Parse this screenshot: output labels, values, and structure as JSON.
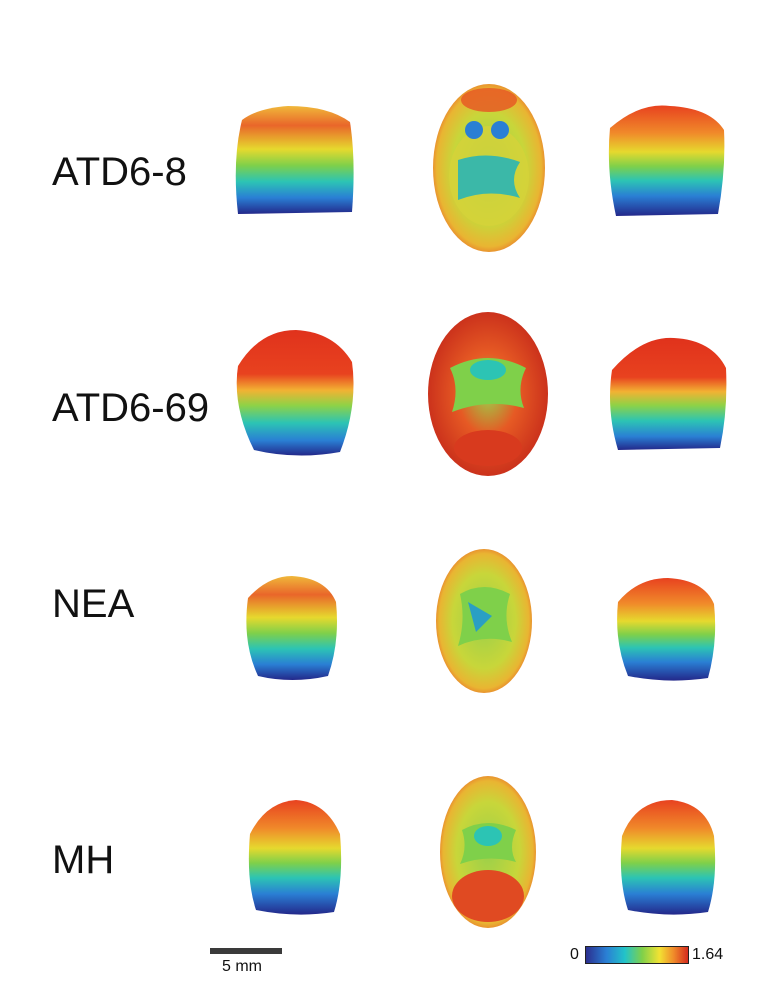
{
  "rows": [
    {
      "label": "ATD6-8"
    },
    {
      "label": "ATD6-69"
    },
    {
      "label": "NEA"
    },
    {
      "label": "MH"
    }
  ],
  "scale_bar": {
    "label": "5 mm"
  },
  "colorbar": {
    "min_label": "0",
    "max_label": "1.64",
    "colors": [
      "#2b2f8f",
      "#2a7fd4",
      "#22c3c9",
      "#7fd04a",
      "#f2e233",
      "#f08a2a",
      "#d42a1e"
    ]
  },
  "colors": {
    "background": "#ffffff",
    "text": "#111111"
  }
}
